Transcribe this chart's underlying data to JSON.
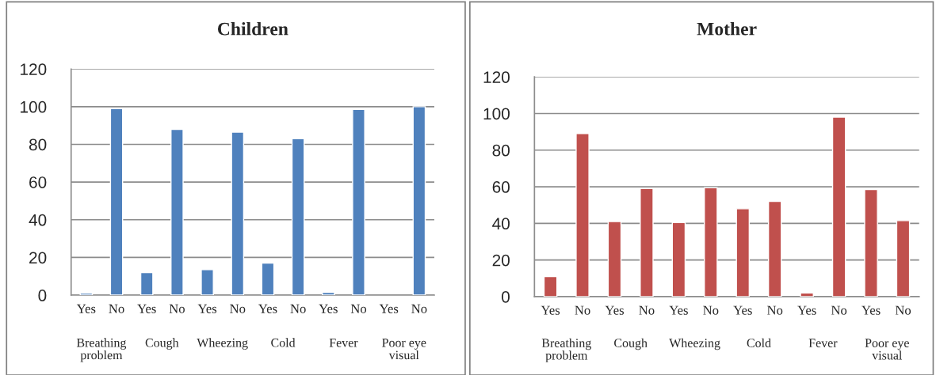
{
  "chart_data": [
    {
      "type": "bar",
      "title": "Children",
      "categories": [
        "Yes",
        "No",
        "Yes",
        "No",
        "Yes",
        "No",
        "Yes",
        "No",
        "Yes",
        "No",
        "Yes",
        "No"
      ],
      "series": [
        {
          "color": "#4f81bd",
          "values": [
            1,
            99,
            12,
            88,
            13.5,
            86.5,
            17,
            83,
            1.5,
            98.5,
            null,
            100
          ]
        }
      ],
      "annotations": [
        "Breathing problem",
        "Cough",
        "Wheezing",
        "Cold",
        "Fever",
        "Poor eye visual"
      ],
      "ylim": [
        0,
        120
      ],
      "yticks": [
        0,
        20,
        40,
        60,
        80,
        100,
        120
      ],
      "grid": "y",
      "legend": false
    },
    {
      "type": "bar",
      "title": "Mother",
      "categories": [
        "Yes",
        "No",
        "Yes",
        "No",
        "Yes",
        "No",
        "Yes",
        "No",
        "Yes",
        "No",
        "Yes",
        "No"
      ],
      "series": [
        {
          "color": "#c0504d",
          "values": [
            11,
            89,
            41,
            59,
            40.5,
            59.5,
            48,
            52,
            2,
            98,
            58.5,
            41.5
          ]
        }
      ],
      "annotations": [
        "Breathing problem",
        "Cough",
        "Wheezing",
        "Cold",
        "Fever",
        "Poor eye visual"
      ],
      "ylim": [
        0,
        120
      ],
      "yticks": [
        0,
        20,
        40,
        60,
        80,
        100,
        120
      ],
      "grid": "y",
      "legend": false
    }
  ]
}
